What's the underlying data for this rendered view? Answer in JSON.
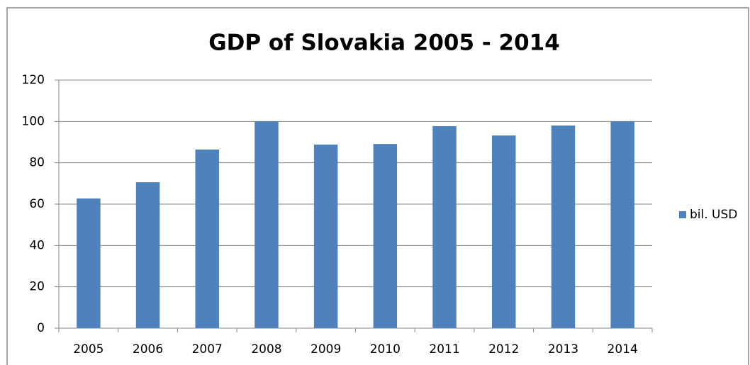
{
  "chart_data": {
    "type": "bar",
    "title": "GDP of Slovakia 2005 - 2014",
    "categories": [
      "2005",
      "2006",
      "2007",
      "2008",
      "2009",
      "2010",
      "2011",
      "2012",
      "2013",
      "2014"
    ],
    "series": [
      {
        "name": "bil. USD",
        "color": "#4f81bd",
        "values": [
          62.7,
          70.6,
          86.4,
          100,
          88.8,
          89.1,
          97.7,
          93.2,
          98.0,
          100
        ]
      }
    ],
    "ylim": [
      0,
      120
    ],
    "yticks": [
      0,
      20,
      40,
      60,
      80,
      100,
      120
    ],
    "grid": true,
    "legend": "right"
  }
}
